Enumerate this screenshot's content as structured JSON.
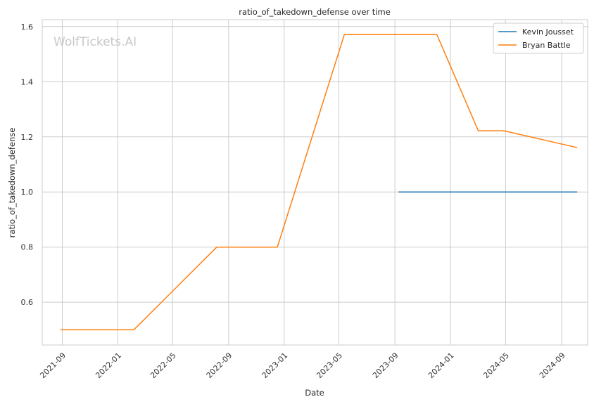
{
  "chart_data": {
    "type": "line",
    "title": "ratio_of_takedown_defense over time",
    "xlabel": "Date",
    "ylabel": "ratio_of_takedown_defense",
    "watermark": "WolfTickets.AI",
    "xlim": [
      "2021-07-19",
      "2024-10-28"
    ],
    "ylim": [
      0.445,
      1.625
    ],
    "x_ticks": [
      "2021-09-01",
      "2022-01-01",
      "2022-05-01",
      "2022-09-01",
      "2023-01-01",
      "2023-05-01",
      "2023-09-01",
      "2024-01-01",
      "2024-05-01",
      "2024-09-01"
    ],
    "x_tick_labels": [
      "2021-09",
      "2022-01",
      "2022-05",
      "2022-09",
      "2023-01",
      "2023-05",
      "2023-09",
      "2024-01",
      "2024-05",
      "2024-09"
    ],
    "y_ticks": [
      0.6,
      0.8,
      1.0,
      1.2,
      1.4,
      1.6
    ],
    "y_tick_labels": [
      "0.6",
      "0.8",
      "1.0",
      "1.2",
      "1.4",
      "1.6"
    ],
    "grid": true,
    "legend_position": "top-right",
    "series": [
      {
        "name": "Kevin Jousset",
        "color": "#1f77b4",
        "x": [
          "2023-09-09",
          "2024-10-05"
        ],
        "y": [
          1.0,
          1.0
        ]
      },
      {
        "name": "Bryan Battle",
        "color": "#ff7f0e",
        "x": [
          "2021-08-28",
          "2022-02-05",
          "2022-08-06",
          "2022-12-17",
          "2023-05-13",
          "2023-12-02",
          "2024-03-02",
          "2024-04-27",
          "2024-10-05"
        ],
        "y": [
          0.5,
          0.5,
          0.8,
          0.8,
          1.571,
          1.571,
          1.222,
          1.222,
          1.161
        ]
      }
    ]
  }
}
